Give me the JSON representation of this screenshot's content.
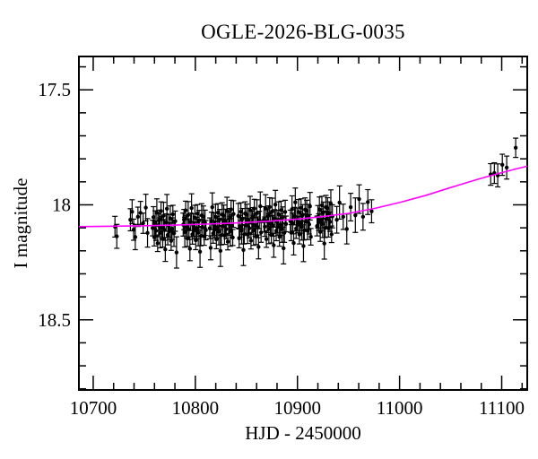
{
  "chart_data": {
    "type": "scatter",
    "title": "OGLE-2026-BLG-0035",
    "xlabel": "HJD - 2450000",
    "ylabel": "I magnitude",
    "xlim": [
      10686,
      11125
    ],
    "ylim": [
      17.355,
      18.805
    ],
    "y_inverted": true,
    "grid": false,
    "x_major_ticks": [
      10700,
      10800,
      10900,
      11000,
      11100
    ],
    "x_minor_step": 20,
    "y_major_ticks": [
      17.5,
      18,
      18.5
    ],
    "y_minor_step": 0.1,
    "colors": {
      "points": "#000000",
      "model": "#ff00ff",
      "frame": "#000000",
      "background": "#ffffff"
    },
    "model_curve": [
      [
        10686,
        18.095
      ],
      [
        10720,
        18.093
      ],
      [
        10750,
        18.091
      ],
      [
        10780,
        18.088
      ],
      [
        10810,
        18.084
      ],
      [
        10840,
        18.079
      ],
      [
        10870,
        18.072
      ],
      [
        10900,
        18.062
      ],
      [
        10925,
        18.051
      ],
      [
        10950,
        18.037
      ],
      [
        10975,
        18.016
      ],
      [
        11000,
        17.99
      ],
      [
        11025,
        17.96
      ],
      [
        11050,
        17.925
      ],
      [
        11075,
        17.891
      ],
      [
        11100,
        17.86
      ],
      [
        11112,
        17.846
      ],
      [
        11125,
        17.832
      ]
    ],
    "points": [
      [
        10721.3,
        18.095,
        0.045
      ],
      [
        10723.1,
        18.137,
        0.052
      ],
      [
        10736.4,
        18.065,
        0.048
      ],
      [
        10738.1,
        18.03,
        0.052
      ],
      [
        10739.6,
        18.108,
        0.046
      ],
      [
        10741.2,
        18.14,
        0.055
      ],
      [
        10743.8,
        18.052,
        0.042
      ],
      [
        10746.3,
        18.035,
        0.05
      ],
      [
        10748.9,
        18.08,
        0.044
      ],
      [
        10751.5,
        18.012,
        0.058
      ],
      [
        10753.2,
        18.122,
        0.062
      ],
      [
        10758.2,
        18.101,
        0.034
      ],
      [
        10759.0,
        18.054,
        0.046
      ],
      [
        10759.8,
        18.141,
        0.038
      ],
      [
        10760.7,
        18.081,
        0.055
      ],
      [
        10761.5,
        18.113,
        0.042
      ],
      [
        10762.3,
        18.034,
        0.06
      ],
      [
        10763.1,
        18.167,
        0.036
      ],
      [
        10764.0,
        18.089,
        0.05
      ],
      [
        10764.8,
        18.067,
        0.044
      ],
      [
        10765.6,
        18.122,
        0.065
      ],
      [
        10766.4,
        18.027,
        0.04
      ],
      [
        10767.3,
        18.099,
        0.048
      ],
      [
        10768.1,
        18.149,
        0.035
      ],
      [
        10768.9,
        18.047,
        0.058
      ],
      [
        10769.7,
        18.109,
        0.045
      ],
      [
        10770.6,
        18.194,
        0.052
      ],
      [
        10771.4,
        18.077,
        0.038
      ],
      [
        10772.2,
        18.017,
        0.062
      ],
      [
        10773.0,
        18.131,
        0.043
      ],
      [
        10773.9,
        18.091,
        0.049
      ],
      [
        10774.7,
        18.114,
        0.036
      ],
      [
        10775.5,
        18.059,
        0.054
      ],
      [
        10776.3,
        18.157,
        0.041
      ],
      [
        10777.2,
        18.104,
        0.047
      ],
      [
        10778.0,
        18.041,
        0.039
      ],
      [
        10779.1,
        18.124,
        0.057
      ],
      [
        10780.3,
        18.071,
        0.044
      ],
      [
        10781.6,
        18.207,
        0.068
      ],
      [
        10788.1,
        18.086,
        0.05
      ],
      [
        10788.9,
        18.064,
        0.044
      ],
      [
        10789.7,
        18.119,
        0.065
      ],
      [
        10790.5,
        18.024,
        0.04
      ],
      [
        10791.4,
        18.096,
        0.048
      ],
      [
        10792.2,
        18.146,
        0.035
      ],
      [
        10793.0,
        18.044,
        0.058
      ],
      [
        10793.8,
        18.106,
        0.045
      ],
      [
        10794.7,
        18.191,
        0.052
      ],
      [
        10795.5,
        18.074,
        0.038
      ],
      [
        10796.3,
        18.014,
        0.062
      ],
      [
        10797.1,
        18.128,
        0.043
      ],
      [
        10798.0,
        18.088,
        0.049
      ],
      [
        10798.8,
        18.111,
        0.036
      ],
      [
        10799.6,
        18.056,
        0.054
      ],
      [
        10800.4,
        18.154,
        0.041
      ],
      [
        10801.3,
        18.101,
        0.047
      ],
      [
        10802.1,
        18.038,
        0.039
      ],
      [
        10802.9,
        18.121,
        0.057
      ],
      [
        10803.7,
        18.068,
        0.044
      ],
      [
        10804.6,
        18.204,
        0.068
      ],
      [
        10805.4,
        18.136,
        0.042
      ],
      [
        10806.2,
        18.046,
        0.051
      ],
      [
        10807.0,
        18.098,
        0.034
      ],
      [
        10807.9,
        18.051,
        0.046
      ],
      [
        10808.7,
        18.138,
        0.038
      ],
      [
        10809.5,
        18.078,
        0.055
      ],
      [
        10810.3,
        18.11,
        0.042
      ],
      [
        10814.2,
        18.102,
        0.045
      ],
      [
        10815.0,
        18.187,
        0.052
      ],
      [
        10815.8,
        18.07,
        0.038
      ],
      [
        10816.6,
        18.01,
        0.062
      ],
      [
        10817.4,
        18.124,
        0.043
      ],
      [
        10818.2,
        18.084,
        0.049
      ],
      [
        10819.0,
        18.107,
        0.036
      ],
      [
        10819.8,
        18.052,
        0.054
      ],
      [
        10820.6,
        18.15,
        0.041
      ],
      [
        10821.4,
        18.097,
        0.047
      ],
      [
        10822.2,
        18.034,
        0.039
      ],
      [
        10823.0,
        18.117,
        0.057
      ],
      [
        10823.8,
        18.064,
        0.044
      ],
      [
        10824.6,
        18.2,
        0.068
      ],
      [
        10825.4,
        18.132,
        0.042
      ],
      [
        10826.2,
        18.042,
        0.051
      ],
      [
        10827.0,
        18.094,
        0.034
      ],
      [
        10827.8,
        18.047,
        0.046
      ],
      [
        10828.6,
        18.134,
        0.038
      ],
      [
        10829.4,
        18.074,
        0.055
      ],
      [
        10830.2,
        18.106,
        0.042
      ],
      [
        10831.0,
        18.027,
        0.06
      ],
      [
        10831.8,
        18.16,
        0.036
      ],
      [
        10832.6,
        18.082,
        0.05
      ],
      [
        10833.4,
        18.06,
        0.044
      ],
      [
        10834.2,
        18.115,
        0.065
      ],
      [
        10835.0,
        18.02,
        0.04
      ],
      [
        10835.8,
        18.092,
        0.048
      ],
      [
        10836.6,
        18.142,
        0.035
      ],
      [
        10837.4,
        18.04,
        0.058
      ],
      [
        10842.1,
        18.048,
        0.054
      ],
      [
        10842.9,
        18.146,
        0.041
      ],
      [
        10843.8,
        18.093,
        0.047
      ],
      [
        10844.6,
        18.03,
        0.039
      ],
      [
        10845.4,
        18.113,
        0.057
      ],
      [
        10846.2,
        18.06,
        0.044
      ],
      [
        10847.1,
        18.196,
        0.068
      ],
      [
        10847.9,
        18.128,
        0.042
      ],
      [
        10848.7,
        18.038,
        0.051
      ],
      [
        10849.5,
        18.09,
        0.034
      ],
      [
        10850.4,
        18.043,
        0.046
      ],
      [
        10851.2,
        18.13,
        0.038
      ],
      [
        10852.0,
        18.07,
        0.055
      ],
      [
        10852.8,
        18.102,
        0.042
      ],
      [
        10853.7,
        18.023,
        0.06
      ],
      [
        10854.5,
        18.156,
        0.036
      ],
      [
        10855.3,
        18.078,
        0.05
      ],
      [
        10856.1,
        18.056,
        0.044
      ],
      [
        10857.0,
        18.111,
        0.065
      ],
      [
        10857.8,
        18.016,
        0.04
      ],
      [
        10858.6,
        18.088,
        0.048
      ],
      [
        10859.4,
        18.138,
        0.035
      ],
      [
        10860.3,
        18.036,
        0.058
      ],
      [
        10861.1,
        18.098,
        0.045
      ],
      [
        10861.9,
        18.183,
        0.052
      ],
      [
        10862.7,
        18.066,
        0.038
      ],
      [
        10863.6,
        18.006,
        0.062
      ],
      [
        10864.4,
        18.12,
        0.043
      ],
      [
        10867.2,
        18.063,
        0.055
      ],
      [
        10868.0,
        18.095,
        0.042
      ],
      [
        10868.8,
        18.016,
        0.06
      ],
      [
        10869.6,
        18.149,
        0.036
      ],
      [
        10870.4,
        18.071,
        0.05
      ],
      [
        10871.2,
        18.049,
        0.044
      ],
      [
        10872.0,
        18.104,
        0.065
      ],
      [
        10872.8,
        18.009,
        0.04
      ],
      [
        10873.6,
        18.081,
        0.048
      ],
      [
        10874.4,
        18.131,
        0.035
      ],
      [
        10875.2,
        18.029,
        0.058
      ],
      [
        10876.0,
        18.091,
        0.045
      ],
      [
        10876.8,
        18.176,
        0.052
      ],
      [
        10877.6,
        18.059,
        0.038
      ],
      [
        10878.4,
        17.999,
        0.062
      ],
      [
        10879.2,
        18.113,
        0.043
      ],
      [
        10880.0,
        18.073,
        0.049
      ],
      [
        10880.8,
        18.096,
        0.036
      ],
      [
        10881.6,
        18.041,
        0.054
      ],
      [
        10882.4,
        18.139,
        0.041
      ],
      [
        10883.2,
        18.086,
        0.047
      ],
      [
        10884.0,
        18.023,
        0.039
      ],
      [
        10884.8,
        18.106,
        0.057
      ],
      [
        10885.6,
        18.053,
        0.044
      ],
      [
        10886.4,
        18.189,
        0.068
      ],
      [
        10887.2,
        18.121,
        0.042
      ],
      [
        10888.0,
        18.031,
        0.051
      ],
      [
        10888.8,
        18.083,
        0.034
      ],
      [
        10893.1,
        18.071,
        0.048
      ],
      [
        10893.9,
        18.121,
        0.035
      ],
      [
        10894.7,
        18.019,
        0.058
      ],
      [
        10895.5,
        18.081,
        0.045
      ],
      [
        10896.3,
        18.166,
        0.052
      ],
      [
        10897.1,
        18.049,
        0.038
      ],
      [
        10897.9,
        17.989,
        0.062
      ],
      [
        10898.7,
        18.103,
        0.043
      ],
      [
        10899.5,
        18.063,
        0.049
      ],
      [
        10900.3,
        18.086,
        0.036
      ],
      [
        10901.1,
        18.031,
        0.054
      ],
      [
        10901.9,
        18.129,
        0.041
      ],
      [
        10902.7,
        18.076,
        0.047
      ],
      [
        10903.5,
        18.013,
        0.039
      ],
      [
        10904.3,
        18.096,
        0.057
      ],
      [
        10905.1,
        18.043,
        0.044
      ],
      [
        10905.9,
        18.179,
        0.068
      ],
      [
        10906.7,
        18.111,
        0.042
      ],
      [
        10907.5,
        18.021,
        0.051
      ],
      [
        10908.3,
        18.073,
        0.034
      ],
      [
        10909.1,
        18.026,
        0.046
      ],
      [
        10909.9,
        18.113,
        0.038
      ],
      [
        10910.7,
        18.053,
        0.055
      ],
      [
        10911.5,
        18.085,
        0.042
      ],
      [
        10912.3,
        18.006,
        0.06
      ],
      [
        10913.1,
        18.139,
        0.036
      ],
      [
        10919.2,
        18.092,
        0.043
      ],
      [
        10920.0,
        18.052,
        0.049
      ],
      [
        10920.8,
        18.075,
        0.036
      ],
      [
        10921.5,
        18.02,
        0.054
      ],
      [
        10922.3,
        18.118,
        0.041
      ],
      [
        10923.1,
        18.065,
        0.047
      ],
      [
        10923.9,
        18.002,
        0.039
      ],
      [
        10924.7,
        18.085,
        0.057
      ],
      [
        10925.5,
        18.032,
        0.044
      ],
      [
        10926.3,
        18.168,
        0.068
      ],
      [
        10927.1,
        18.1,
        0.042
      ],
      [
        10927.9,
        18.01,
        0.051
      ],
      [
        10928.7,
        18.062,
        0.034
      ],
      [
        10929.5,
        18.015,
        0.046
      ],
      [
        10930.3,
        18.102,
        0.038
      ],
      [
        10931.1,
        18.042,
        0.055
      ],
      [
        10931.9,
        18.074,
        0.042
      ],
      [
        10932.7,
        17.995,
        0.06
      ],
      [
        10933.4,
        18.128,
        0.036
      ],
      [
        10934.2,
        18.05,
        0.05
      ],
      [
        10938.5,
        18.065,
        0.058
      ],
      [
        10941.2,
        17.99,
        0.072
      ],
      [
        10944.8,
        18.052,
        0.055
      ],
      [
        10948.3,
        18.105,
        0.065
      ],
      [
        10952.1,
        18.01,
        0.06
      ],
      [
        10956.7,
        18.045,
        0.075
      ],
      [
        10960.4,
        17.975,
        0.062
      ],
      [
        10964.2,
        18.052,
        0.058
      ],
      [
        10968.9,
        17.988,
        0.054
      ],
      [
        10972.6,
        18.028,
        0.05
      ],
      [
        11089.2,
        17.868,
        0.047
      ],
      [
        11092.8,
        17.862,
        0.045
      ],
      [
        11096.1,
        17.872,
        0.05
      ],
      [
        11100.6,
        17.826,
        0.046
      ],
      [
        11104.9,
        17.838,
        0.05
      ],
      [
        11113.7,
        17.752,
        0.042
      ]
    ]
  }
}
